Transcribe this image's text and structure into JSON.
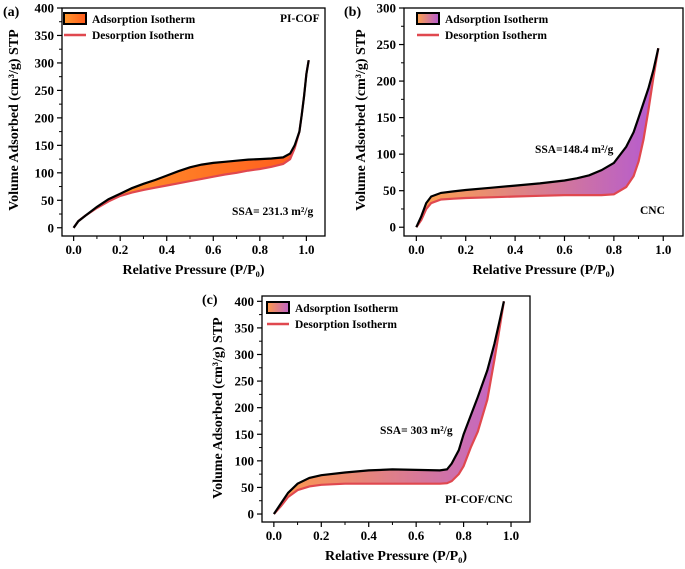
{
  "colors": {
    "adsorption_line": "#000000",
    "desorption_line": "#e0484f",
    "fill_a": [
      "#ff9a2e",
      "#ff5a1c"
    ],
    "fill_b": [
      "#ffa24a",
      "#b45ad2"
    ],
    "fill_c": [
      "#ff9a48",
      "#c064c8"
    ]
  },
  "chart_data": [
    {
      "type": "area",
      "panel_label": "(a)",
      "title": "",
      "sample": "PI-COF",
      "annotation": "SSA= 231.3  m²/g",
      "xlabel": "Relative Pressure (P/P₀)",
      "ylabel": "Volume Adsorbed (cm³/g) STP",
      "xlim": [
        -0.05,
        1.08
      ],
      "ylim": [
        -15,
        400
      ],
      "xticks": [
        "0.0",
        "0.2",
        "0.4",
        "0.6",
        "0.8",
        "1.0"
      ],
      "yticks": [
        "0",
        "50",
        "100",
        "150",
        "200",
        "250",
        "300",
        "350",
        "400"
      ],
      "legend": [
        "Adsorption Isotherm",
        "Desorption Isotherm"
      ],
      "legend_position": "top-left",
      "grid": false,
      "series": [
        {
          "name": "Adsorption Isotherm",
          "x": [
            0.0,
            0.02,
            0.05,
            0.1,
            0.15,
            0.2,
            0.25,
            0.3,
            0.35,
            0.4,
            0.45,
            0.5,
            0.55,
            0.6,
            0.65,
            0.7,
            0.75,
            0.8,
            0.85,
            0.9,
            0.93,
            0.95,
            0.97,
            0.98,
            0.99,
            1.0,
            1.01
          ],
          "y": [
            0,
            12,
            22,
            38,
            52,
            62,
            72,
            80,
            87,
            95,
            103,
            110,
            115,
            118,
            120,
            122,
            124,
            125,
            126,
            128,
            135,
            150,
            175,
            205,
            240,
            280,
            305
          ]
        },
        {
          "name": "Desorption Isotherm",
          "x": [
            0.0,
            0.02,
            0.05,
            0.1,
            0.15,
            0.2,
            0.25,
            0.3,
            0.35,
            0.4,
            0.45,
            0.5,
            0.55,
            0.6,
            0.65,
            0.7,
            0.75,
            0.8,
            0.85,
            0.9,
            0.93,
            0.95,
            0.97,
            0.98,
            0.99,
            1.0,
            1.01
          ],
          "y": [
            0,
            12,
            22,
            36,
            48,
            58,
            64,
            69,
            73,
            77,
            81,
            85,
            89,
            93,
            97,
            100,
            104,
            107,
            111,
            116,
            125,
            145,
            175,
            205,
            240,
            280,
            305
          ]
        }
      ]
    },
    {
      "type": "area",
      "panel_label": "(b)",
      "title": "",
      "sample": "CNC",
      "annotation": "SSA=148.4 m²/g",
      "xlabel": "Relative Pressure (P/P₀)",
      "ylabel": "Volume Adsorbed (cm³/g) STP",
      "xlim": [
        -0.05,
        1.08
      ],
      "ylim": [
        -12,
        300
      ],
      "xticks": [
        "0.0",
        "0.2",
        "0.4",
        "0.6",
        "0.8",
        "1.0"
      ],
      "yticks": [
        "0",
        "50",
        "100",
        "150",
        "200",
        "250",
        "300"
      ],
      "legend": [
        "Adsorption Isotherm",
        "Desorption Isotherm"
      ],
      "legend_position": "top-left",
      "grid": false,
      "series": [
        {
          "name": "Adsorption Isotherm",
          "x": [
            0.0,
            0.02,
            0.04,
            0.06,
            0.1,
            0.15,
            0.2,
            0.3,
            0.4,
            0.5,
            0.6,
            0.65,
            0.7,
            0.75,
            0.8,
            0.85,
            0.88,
            0.9,
            0.92,
            0.94,
            0.96,
            0.98
          ],
          "y": [
            0,
            15,
            33,
            42,
            47,
            49,
            51,
            54,
            57,
            60,
            64,
            67,
            71,
            78,
            88,
            110,
            130,
            150,
            170,
            190,
            215,
            245
          ]
        },
        {
          "name": "Desorption Isotherm",
          "x": [
            0.0,
            0.02,
            0.04,
            0.06,
            0.1,
            0.15,
            0.2,
            0.3,
            0.4,
            0.5,
            0.6,
            0.65,
            0.7,
            0.75,
            0.8,
            0.85,
            0.88,
            0.9,
            0.92,
            0.94,
            0.96,
            0.98
          ],
          "y": [
            0,
            10,
            25,
            33,
            38,
            39,
            40,
            41,
            42,
            43,
            44,
            44,
            44,
            44,
            45,
            55,
            70,
            90,
            120,
            160,
            205,
            245
          ]
        }
      ]
    },
    {
      "type": "area",
      "panel_label": "(c)",
      "title": "",
      "sample": "PI-COF/CNC",
      "annotation": "SSA= 303 m²/g",
      "xlabel": "Relative Pressure (P/P₀)",
      "ylabel": "Volume Adsorbed (cm³/g) STP",
      "xlim": [
        -0.05,
        1.08
      ],
      "ylim": [
        -15,
        410
      ],
      "xticks": [
        "0.0",
        "0.2",
        "0.4",
        "0.6",
        "0.8",
        "1.0"
      ],
      "yticks": [
        "0",
        "50",
        "100",
        "150",
        "200",
        "250",
        "300",
        "350",
        "400"
      ],
      "legend": [
        "Adsorption Isotherm",
        "Desorption Isotherm"
      ],
      "legend_position": "top-left",
      "grid": false,
      "series": [
        {
          "name": "Adsorption Isotherm",
          "x": [
            0.0,
            0.03,
            0.06,
            0.1,
            0.15,
            0.2,
            0.3,
            0.4,
            0.5,
            0.6,
            0.7,
            0.73,
            0.75,
            0.78,
            0.8,
            0.83,
            0.86,
            0.9,
            0.93,
            0.95,
            0.97
          ],
          "y": [
            0,
            20,
            40,
            57,
            68,
            73,
            78,
            82,
            84,
            83,
            82,
            84,
            95,
            120,
            150,
            185,
            220,
            270,
            320,
            360,
            400
          ]
        },
        {
          "name": "Desorption Isotherm",
          "x": [
            0.0,
            0.03,
            0.06,
            0.1,
            0.15,
            0.2,
            0.3,
            0.4,
            0.5,
            0.6,
            0.7,
            0.73,
            0.75,
            0.78,
            0.8,
            0.83,
            0.86,
            0.9,
            0.93,
            0.95,
            0.97
          ],
          "y": [
            0,
            15,
            32,
            45,
            52,
            55,
            57,
            57,
            57,
            57,
            57,
            58,
            62,
            75,
            90,
            125,
            155,
            215,
            290,
            345,
            400
          ]
        }
      ]
    }
  ]
}
